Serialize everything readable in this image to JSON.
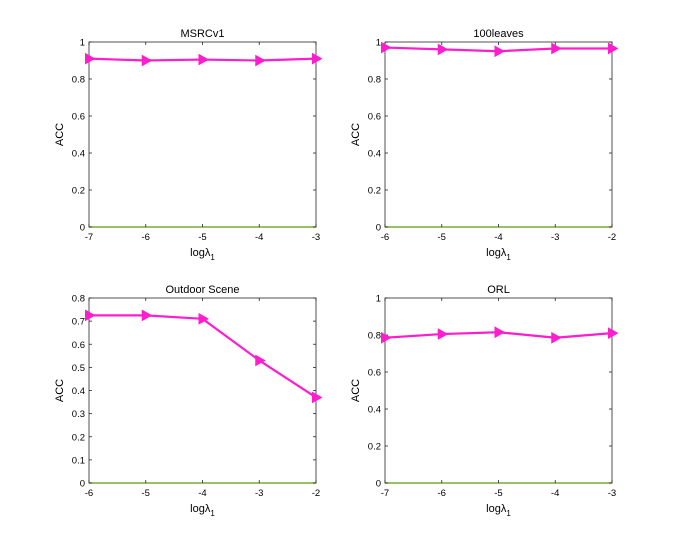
{
  "colors": {
    "series": "#ff1dce",
    "baseline": "#77ac30",
    "axis": "#262626"
  },
  "chart_data": [
    {
      "type": "line",
      "title": "MSRCv1",
      "xlabel_base": "log",
      "xlabel_symbol": "λ",
      "xlabel_sub": "1",
      "ylabel": "ACC",
      "x": [
        -7,
        -6,
        -5,
        -4,
        -3
      ],
      "xticks": [
        "-7",
        "-6",
        "-5",
        "-4",
        "-3"
      ],
      "xlim": [
        -7,
        -3
      ],
      "values": [
        0.91,
        0.9,
        0.905,
        0.9,
        0.91
      ],
      "ylim": [
        0,
        1
      ],
      "yticks": [
        0,
        0.2,
        0.4,
        0.6,
        0.8,
        1
      ],
      "ytick_labels": [
        "0",
        "0.2",
        "0.4",
        "0.6",
        "0.8",
        "1"
      ],
      "marker": "triangle-right"
    },
    {
      "type": "line",
      "title": "100leaves",
      "xlabel_base": "log",
      "xlabel_symbol": "λ",
      "xlabel_sub": "1",
      "ylabel": "ACC",
      "x": [
        -6,
        -5,
        -4,
        -3,
        -2
      ],
      "xticks": [
        "-6",
        "-5",
        "-4",
        "-3",
        "-2"
      ],
      "xlim": [
        -6,
        -2
      ],
      "values": [
        0.97,
        0.96,
        0.95,
        0.965,
        0.965
      ],
      "ylim": [
        0,
        1
      ],
      "yticks": [
        0,
        0.2,
        0.4,
        0.6,
        0.8,
        1
      ],
      "ytick_labels": [
        "0",
        "0.2",
        "0.4",
        "0.6",
        "0.8",
        "1"
      ],
      "marker": "triangle-right"
    },
    {
      "type": "line",
      "title": "Outdoor Scene",
      "xlabel_base": "log",
      "xlabel_symbol": "λ",
      "xlabel_sub": "1",
      "ylabel": "ACC",
      "x": [
        -6,
        -5,
        -4,
        -3,
        -2
      ],
      "xticks": [
        "-6",
        "-5",
        "-4",
        "-3",
        "-2"
      ],
      "xlim": [
        -6,
        -2
      ],
      "values": [
        0.725,
        0.725,
        0.71,
        0.53,
        0.37
      ],
      "ylim": [
        0,
        0.8
      ],
      "yticks": [
        0,
        0.1,
        0.2,
        0.3,
        0.4,
        0.5,
        0.6,
        0.7,
        0.8
      ],
      "ytick_labels": [
        "0",
        "0.1",
        "0.2",
        "0.3",
        "0.4",
        "0.5",
        "0.6",
        "0.7",
        "0.8"
      ],
      "marker": "triangle-right"
    },
    {
      "type": "line",
      "title": "ORL",
      "xlabel_base": "log",
      "xlabel_symbol": "λ",
      "xlabel_sub": "1",
      "ylabel": "ACC",
      "x": [
        -7,
        -6,
        -5,
        -4,
        -3
      ],
      "xticks": [
        "-7",
        "-6",
        "-5",
        "-4",
        "-3"
      ],
      "xlim": [
        -7,
        -3
      ],
      "values": [
        0.785,
        0.805,
        0.815,
        0.785,
        0.81
      ],
      "ylim": [
        0,
        1
      ],
      "yticks": [
        0,
        0.2,
        0.4,
        0.6,
        0.8,
        1
      ],
      "ytick_labels": [
        "0",
        "0.2",
        "0.4",
        "0.6",
        "0.8",
        "1"
      ],
      "marker": "triangle-right"
    }
  ]
}
